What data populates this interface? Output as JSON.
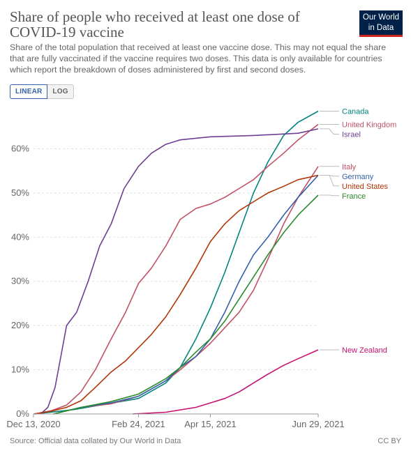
{
  "header": {
    "title": "Share of people who received at least one dose of COVID-19 vaccine",
    "subtitle": "Share of the total population that received at least one vaccine dose. This may not equal the share that are fully vaccinated if the vaccine requires two doses. This data is only available for countries which report the breakdown of doses administered by first and second doses.",
    "logo_line1": "Our World",
    "logo_line2": "in Data"
  },
  "controls": {
    "linear_label": "LINEAR",
    "log_label": "LOG",
    "selected": "LINEAR"
  },
  "footer": {
    "source": "Source: Official data collated by Our World in Data",
    "license": "CC BY"
  },
  "colors": {
    "brand": "#002147",
    "accent": "#ce261e",
    "toggle_active": "#3360a9"
  },
  "chart_data": {
    "type": "line",
    "x_range": [
      "2020-12-13",
      "2021-06-29"
    ],
    "ylim": [
      0,
      70
    ],
    "y_ticks": [
      0,
      10,
      20,
      30,
      40,
      50,
      60
    ],
    "y_tick_labels": [
      "0%",
      "10%",
      "20%",
      "30%",
      "40%",
      "50%",
      "60%"
    ],
    "x_ticks": [
      "2020-12-13",
      "2021-02-24",
      "2021-04-15",
      "2021-06-29"
    ],
    "x_tick_labels": [
      "Dec 13, 2020",
      "Feb 24, 2021",
      "Apr 15, 2021",
      "Jun 29, 2021"
    ],
    "grid": true,
    "legend": "right",
    "series": [
      {
        "name": "Canada",
        "color": "#00847e",
        "points": [
          [
            "2020-12-14",
            0
          ],
          [
            "2021-01-10",
            1
          ],
          [
            "2021-02-01",
            2.2
          ],
          [
            "2021-02-24",
            3.5
          ],
          [
            "2021-03-15",
            7
          ],
          [
            "2021-03-25",
            10.5
          ],
          [
            "2021-04-05",
            17
          ],
          [
            "2021-04-15",
            24
          ],
          [
            "2021-04-25",
            32
          ],
          [
            "2021-05-05",
            41
          ],
          [
            "2021-05-15",
            50
          ],
          [
            "2021-05-25",
            57
          ],
          [
            "2021-06-05",
            63
          ],
          [
            "2021-06-15",
            66
          ],
          [
            "2021-06-29",
            68.5
          ]
        ]
      },
      {
        "name": "United Kingdom",
        "color": "#c15065",
        "points": [
          [
            "2020-12-13",
            0
          ],
          [
            "2020-12-25",
            0.7
          ],
          [
            "2021-01-05",
            2
          ],
          [
            "2021-01-15",
            5
          ],
          [
            "2021-01-25",
            10
          ],
          [
            "2021-02-05",
            17
          ],
          [
            "2021-02-15",
            23
          ],
          [
            "2021-02-24",
            29.5
          ],
          [
            "2021-03-05",
            33
          ],
          [
            "2021-03-15",
            38
          ],
          [
            "2021-03-25",
            44
          ],
          [
            "2021-04-05",
            46.5
          ],
          [
            "2021-04-15",
            47.5
          ],
          [
            "2021-04-25",
            49
          ],
          [
            "2021-05-05",
            51
          ],
          [
            "2021-05-15",
            53
          ],
          [
            "2021-05-25",
            56
          ],
          [
            "2021-06-05",
            59
          ],
          [
            "2021-06-15",
            62
          ],
          [
            "2021-06-29",
            65.5
          ]
        ]
      },
      {
        "name": "Israel",
        "color": "#6d3e91",
        "points": [
          [
            "2020-12-18",
            0
          ],
          [
            "2020-12-23",
            1.5
          ],
          [
            "2020-12-28",
            6
          ],
          [
            "2021-01-01",
            13
          ],
          [
            "2021-01-05",
            20
          ],
          [
            "2021-01-12",
            23
          ],
          [
            "2021-01-20",
            30
          ],
          [
            "2021-01-28",
            38
          ],
          [
            "2021-02-05",
            43
          ],
          [
            "2021-02-14",
            51
          ],
          [
            "2021-02-24",
            56
          ],
          [
            "2021-03-05",
            59
          ],
          [
            "2021-03-15",
            61
          ],
          [
            "2021-03-25",
            62
          ],
          [
            "2021-04-15",
            62.7
          ],
          [
            "2021-05-15",
            63
          ],
          [
            "2021-06-15",
            63.5
          ],
          [
            "2021-06-29",
            64.5
          ]
        ]
      },
      {
        "name": "Italy",
        "color": "#c15065",
        "points": [
          [
            "2020-12-27",
            0
          ],
          [
            "2021-01-15",
            1.5
          ],
          [
            "2021-02-05",
            2.3
          ],
          [
            "2021-02-24",
            4
          ],
          [
            "2021-03-15",
            7.5
          ],
          [
            "2021-03-25",
            10
          ],
          [
            "2021-04-05",
            13
          ],
          [
            "2021-04-15",
            16
          ],
          [
            "2021-04-25",
            19.5
          ],
          [
            "2021-05-05",
            23
          ],
          [
            "2021-05-15",
            28
          ],
          [
            "2021-05-25",
            35
          ],
          [
            "2021-06-05",
            43
          ],
          [
            "2021-06-15",
            49
          ],
          [
            "2021-06-29",
            56
          ]
        ]
      },
      {
        "name": "Germany",
        "color": "#3360a9",
        "points": [
          [
            "2020-12-27",
            0
          ],
          [
            "2021-01-15",
            1.5
          ],
          [
            "2021-02-05",
            2.5
          ],
          [
            "2021-02-24",
            4
          ],
          [
            "2021-03-15",
            7.5
          ],
          [
            "2021-03-25",
            10.5
          ],
          [
            "2021-04-05",
            13
          ],
          [
            "2021-04-15",
            17
          ],
          [
            "2021-04-25",
            23
          ],
          [
            "2021-05-05",
            30
          ],
          [
            "2021-05-15",
            36
          ],
          [
            "2021-05-25",
            40
          ],
          [
            "2021-06-05",
            45
          ],
          [
            "2021-06-15",
            49
          ],
          [
            "2021-06-29",
            54
          ]
        ]
      },
      {
        "name": "United States",
        "color": "#b13507",
        "points": [
          [
            "2020-12-14",
            0
          ],
          [
            "2020-12-25",
            0.6
          ],
          [
            "2021-01-05",
            1.5
          ],
          [
            "2021-01-15",
            3
          ],
          [
            "2021-01-25",
            6
          ],
          [
            "2021-02-05",
            9.5
          ],
          [
            "2021-02-15",
            12
          ],
          [
            "2021-02-24",
            15
          ],
          [
            "2021-03-05",
            18
          ],
          [
            "2021-03-15",
            22
          ],
          [
            "2021-03-25",
            27
          ],
          [
            "2021-04-05",
            33
          ],
          [
            "2021-04-15",
            39
          ],
          [
            "2021-04-25",
            43
          ],
          [
            "2021-05-05",
            46
          ],
          [
            "2021-05-15",
            48
          ],
          [
            "2021-05-25",
            50
          ],
          [
            "2021-06-05",
            51.5
          ],
          [
            "2021-06-15",
            53
          ],
          [
            "2021-06-29",
            54
          ]
        ]
      },
      {
        "name": "France",
        "color": "#2a8b2a",
        "points": [
          [
            "2020-12-27",
            0
          ],
          [
            "2021-01-15",
            1.5
          ],
          [
            "2021-02-05",
            2.8
          ],
          [
            "2021-02-24",
            4.5
          ],
          [
            "2021-03-15",
            8
          ],
          [
            "2021-03-25",
            10.5
          ],
          [
            "2021-04-05",
            14
          ],
          [
            "2021-04-15",
            17
          ],
          [
            "2021-04-25",
            21
          ],
          [
            "2021-05-05",
            26
          ],
          [
            "2021-05-15",
            31
          ],
          [
            "2021-05-25",
            36
          ],
          [
            "2021-06-05",
            41
          ],
          [
            "2021-06-15",
            45
          ],
          [
            "2021-06-29",
            49.5
          ]
        ]
      },
      {
        "name": "New Zealand",
        "color": "#c8106f",
        "points": [
          [
            "2021-02-20",
            0
          ],
          [
            "2021-03-15",
            0.4
          ],
          [
            "2021-04-05",
            1.5
          ],
          [
            "2021-04-15",
            2.5
          ],
          [
            "2021-04-25",
            3.5
          ],
          [
            "2021-05-05",
            5
          ],
          [
            "2021-05-15",
            7
          ],
          [
            "2021-05-25",
            9
          ],
          [
            "2021-06-05",
            11
          ],
          [
            "2021-06-15",
            12.5
          ],
          [
            "2021-06-29",
            14.5
          ]
        ]
      }
    ]
  }
}
